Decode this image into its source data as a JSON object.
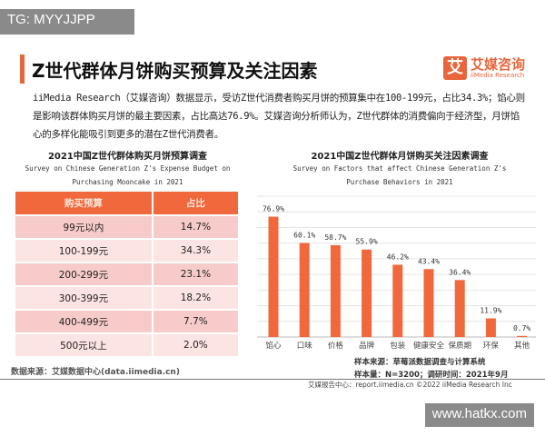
{
  "watermarks": {
    "top_left": "TG: MYYJJPP",
    "bottom_right": "www.hatkx.com"
  },
  "header": {
    "title": "Z世代群体月饼购买预算及关注因素",
    "logo_cn": "艾媒咨询",
    "logo_en": "iiMedia Research",
    "logo_mark": "艾",
    "accent": "#e8663d"
  },
  "paragraph": "iiMedia Research（艾媒咨询）数据显示，受访Z世代消费者购买月饼的预算集中在100-199元，占比34.3%；馅心则是影响该群体购买月饼的最主要因素，占比高达76.9%。艾媒咨询分析师认为，Z世代群体的消费偏向于经济型，月饼馅心的多样化能吸引到更多的潜在Z世代消费者。",
  "table": {
    "title": "2021中国Z世代群体购买月饼预算调查",
    "subtitle1": "Survey on Chinese Generation Z's Expense Budget on",
    "subtitle2": "Purchasing Mooncake in 2021",
    "headers": [
      "购买预算",
      "占比"
    ],
    "rows": [
      [
        "99元以内",
        "14.7%"
      ],
      [
        "100-199元",
        "34.3%"
      ],
      [
        "200-299元",
        "23.1%"
      ],
      [
        "300-399元",
        "18.2%"
      ],
      [
        "400-499元",
        "7.7%"
      ],
      [
        "500元以上",
        "2.0%"
      ]
    ],
    "source": "数据来源：艾媒数据中心(data.iimedia.cn)"
  },
  "chart_data": {
    "type": "bar",
    "title": "2021中国Z世代群体月饼购买关注因素调查",
    "subtitle1": "Survey on Factors that affect  Chinese Generation Z's",
    "subtitle2": "Purchase Behaviors in 2021",
    "categories": [
      "馅心",
      "口味",
      "价格",
      "品牌",
      "包装",
      "健康安全",
      "保质期",
      "环保",
      "其他"
    ],
    "values": [
      76.9,
      60.1,
      58.7,
      55.9,
      46.2,
      43.4,
      36.4,
      11.9,
      0.7
    ],
    "labels": [
      "76.9%",
      "60.1%",
      "58.7%",
      "55.9%",
      "46.2%",
      "43.4%",
      "36.4%",
      "11.9%",
      "0.7%"
    ],
    "ylim": [
      0,
      90
    ],
    "grid": true,
    "color": "#f0683c"
  },
  "notes": {
    "sample_source": "样本来源：草莓派数据调查与计算系统",
    "sample_size": "样本量：N=3200；调研时间：2021年9月"
  },
  "footer": "艾媒报告中心：report.iimedia.cn  ©2022  iiMedia Research Inc"
}
